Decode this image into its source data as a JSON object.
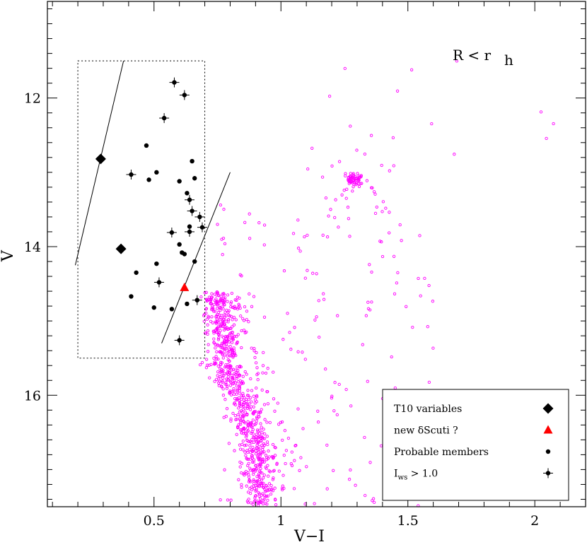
{
  "chart_data": {
    "type": "scatter",
    "xlabel": "V−I",
    "ylabel": "V",
    "xlim": [
      0.08,
      2.2
    ],
    "ylim": [
      17.5,
      10.7
    ],
    "y_inverted": true,
    "xticks": [
      0.5,
      1,
      1.5,
      2
    ],
    "xtick_labels": [
      "0.5",
      "1",
      "1.5",
      "2"
    ],
    "yticks": [
      12,
      14,
      16
    ],
    "ytick_labels": [
      "12",
      "14",
      "16"
    ],
    "grid": false,
    "annotation": {
      "main": "R  <  r",
      "sub": "h"
    },
    "legend_position": "bottom-right",
    "legend": [
      {
        "label": "T10 variables",
        "marker": "diamond",
        "color": "#000000"
      },
      {
        "label": "new δScuti ?",
        "marker": "triangle",
        "color": "#ff0000"
      },
      {
        "label": "Probable members",
        "marker": "dot",
        "color": "#000000"
      },
      {
        "label": "I",
        "label_sub": "ws",
        "label_rest": "  >  1.0",
        "marker": "dot-errorbar",
        "color": "#000000"
      }
    ],
    "selection_box": {
      "x": [
        0.2,
        0.7
      ],
      "y": [
        11.5,
        15.5
      ],
      "style": "dotted"
    },
    "lines": [
      {
        "x": [
          0.19,
          0.38
        ],
        "y": [
          14.25,
          11.5
        ]
      },
      {
        "x": [
          0.53,
          0.8
        ],
        "y": [
          15.3,
          13.0
        ]
      }
    ],
    "series": [
      {
        "name": "T10 variables",
        "marker": "diamond",
        "color": "#000000",
        "points": [
          [
            0.29,
            12.82
          ],
          [
            0.37,
            14.03
          ]
        ]
      },
      {
        "name": "new δScuti ?",
        "marker": "triangle",
        "color": "#ff0000",
        "points": [
          [
            0.62,
            14.55
          ]
        ]
      },
      {
        "name": "Probable members",
        "marker": "dot",
        "color": "#000000",
        "points": [
          [
            0.47,
            12.64
          ],
          [
            0.65,
            12.85
          ],
          [
            0.51,
            13.0
          ],
          [
            0.48,
            13.1
          ],
          [
            0.6,
            13.12
          ],
          [
            0.66,
            13.08
          ],
          [
            0.63,
            13.28
          ],
          [
            0.6,
            13.97
          ],
          [
            0.61,
            14.08
          ],
          [
            0.62,
            14.1
          ],
          [
            0.51,
            14.23
          ],
          [
            0.66,
            14.2
          ],
          [
            0.43,
            14.35
          ],
          [
            0.41,
            14.67
          ],
          [
            0.5,
            14.82
          ],
          [
            0.57,
            14.84
          ],
          [
            0.63,
            14.77
          ],
          [
            0.64,
            13.73
          ]
        ]
      },
      {
        "name": "Iws > 1.0",
        "marker": "dot-errorbar",
        "color": "#000000",
        "points": [
          [
            0.58,
            11.79
          ],
          [
            0.62,
            11.96
          ],
          [
            0.54,
            12.27
          ],
          [
            0.41,
            13.03
          ],
          [
            0.64,
            13.37
          ],
          [
            0.65,
            13.52
          ],
          [
            0.68,
            13.6
          ],
          [
            0.69,
            13.74
          ],
          [
            0.57,
            13.81
          ],
          [
            0.64,
            13.8
          ],
          [
            0.52,
            14.48
          ],
          [
            0.67,
            14.72
          ],
          [
            0.6,
            15.26
          ]
        ]
      },
      {
        "name": "field stars",
        "marker": "open-circle",
        "color": "#ff00ff",
        "generated": true,
        "count": 1150,
        "sequence_top": [
          0.78,
          14.6
        ],
        "sequence_bottom": [
          0.93,
          17.5
        ]
      }
    ]
  }
}
